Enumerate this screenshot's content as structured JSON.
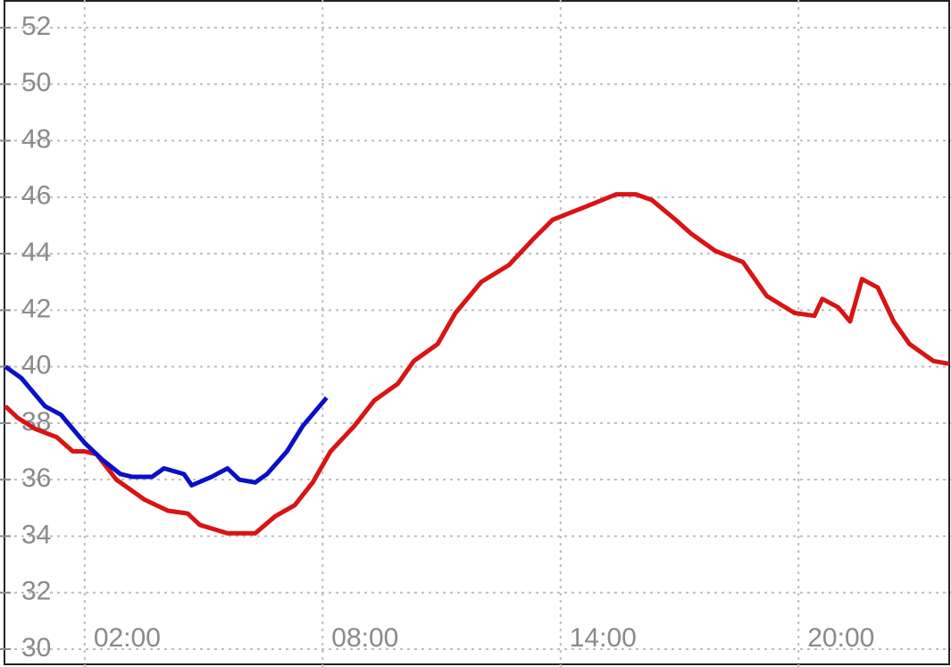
{
  "chart_data": {
    "type": "line",
    "xlim": [
      0,
      23.8
    ],
    "ylim": [
      30,
      52
    ],
    "xticks": [
      {
        "value": 2,
        "label": "02:00"
      },
      {
        "value": 8,
        "label": "08:00"
      },
      {
        "value": 14,
        "label": "14:00"
      },
      {
        "value": 20,
        "label": "20:00"
      }
    ],
    "yticks": [
      30,
      32,
      34,
      36,
      38,
      40,
      42,
      44,
      46,
      48,
      50,
      52
    ],
    "grid": true,
    "series": [
      {
        "color": "#d81414",
        "x": [
          0,
          0.3,
          0.75,
          1.3,
          1.7,
          2.0,
          2.3,
          2.8,
          3.5,
          4.1,
          4.6,
          4.9,
          5.6,
          6.3,
          6.8,
          7.3,
          7.75,
          8.2,
          8.8,
          9.3,
          9.9,
          10.3,
          10.9,
          11.35,
          12.0,
          12.7,
          13.3,
          13.8,
          14.7,
          15.4,
          15.9,
          16.3,
          16.9,
          17.3,
          17.9,
          18.6,
          19.2,
          19.9,
          20.4,
          20.6,
          21.0,
          21.3,
          21.6,
          22.0,
          22.4,
          22.8,
          23.4,
          23.8
        ],
        "values": [
          38.6,
          38.2,
          37.8,
          37.5,
          37.0,
          37.0,
          36.9,
          36.0,
          35.3,
          34.9,
          34.8,
          34.4,
          34.1,
          34.1,
          34.7,
          35.1,
          35.9,
          37.0,
          37.9,
          38.8,
          39.4,
          40.2,
          40.8,
          41.9,
          43.0,
          43.6,
          44.5,
          45.2,
          45.7,
          46.1,
          46.1,
          45.9,
          45.2,
          44.7,
          44.1,
          43.7,
          42.5,
          41.9,
          41.8,
          42.4,
          42.1,
          41.6,
          43.1,
          42.8,
          41.6,
          40.8,
          40.2,
          40.1
        ]
      },
      {
        "color": "#0a10c8",
        "x": [
          0,
          0.4,
          1.0,
          1.4,
          1.7,
          2.0,
          2.45,
          2.9,
          3.2,
          3.7,
          4.0,
          4.5,
          4.7,
          5.2,
          5.6,
          5.9,
          6.3,
          6.6,
          7.1,
          7.5,
          8.1
        ],
        "values": [
          40.0,
          39.6,
          38.6,
          38.3,
          37.8,
          37.3,
          36.7,
          36.2,
          36.1,
          36.1,
          36.4,
          36.2,
          35.8,
          36.1,
          36.4,
          36.0,
          35.9,
          36.2,
          37.0,
          37.9,
          38.9
        ]
      }
    ]
  }
}
